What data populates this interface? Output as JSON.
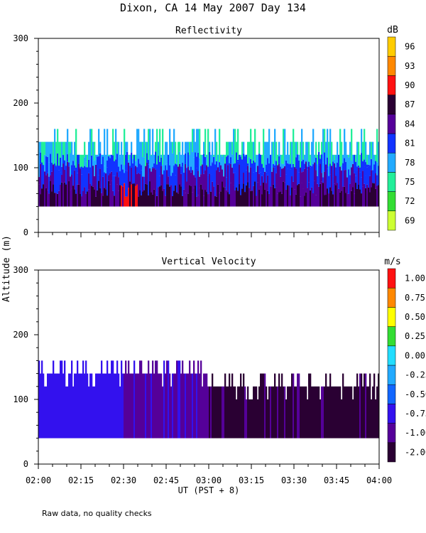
{
  "title": "Dixon, CA 14 May 2007  Day 134",
  "ylabel": "Altitude (m)",
  "xlabel": "UT  (PST + 8)",
  "footnote": "Raw data, no quality checks",
  "x_ticks": [
    "02:00",
    "02:15",
    "02:30",
    "02:45",
    "03:00",
    "03:15",
    "03:30",
    "03:45",
    "04:00"
  ],
  "y_ticks": [
    "0",
    "100",
    "200",
    "300"
  ],
  "chart_data": [
    {
      "type": "heatmap",
      "title": "Reflectivity",
      "x_range": [
        "02:00",
        "04:00"
      ],
      "ylim": [
        0,
        300
      ],
      "colorbar": {
        "unit": "dB",
        "levels": [
          {
            "label": "69",
            "color": "#ccff33"
          },
          {
            "label": "72",
            "color": "#33dd33"
          },
          {
            "label": "75",
            "color": "#22ee99"
          },
          {
            "label": "78",
            "color": "#22aaff"
          },
          {
            "label": "81",
            "color": "#1133ff"
          },
          {
            "label": "84",
            "color": "#550099"
          },
          {
            "label": "87",
            "color": "#2a0033"
          },
          {
            "label": "90",
            "color": "#ff1111"
          },
          {
            "label": "93",
            "color": "#ff8800"
          },
          {
            "label": "96",
            "color": "#ffcc00"
          }
        ]
      },
      "echo_base_m": 40,
      "layers": [
        {
          "level": "84–90",
          "from_m": 40,
          "to_m": 70,
          "note": "dark core, red streaks 02:25–02:35"
        },
        {
          "level": "81–84",
          "from_m": 70,
          "to_m": 100
        },
        {
          "level": "78",
          "from_m": 100,
          "to_m": 120
        },
        {
          "level": "75–78",
          "from_m": 120,
          "to_m": 160,
          "note": "sporadic tops up to 160 m"
        }
      ]
    },
    {
      "type": "heatmap",
      "title": "Vertical Velocity",
      "x_range": [
        "02:00",
        "04:00"
      ],
      "ylim": [
        0,
        300
      ],
      "colorbar": {
        "unit": "m/s",
        "levels": [
          {
            "label": "-2.00",
            "color": "#2a0033"
          },
          {
            "label": "-1.00",
            "color": "#550099"
          },
          {
            "label": "-0.75",
            "color": "#3311ee"
          },
          {
            "label": "-0.50",
            "color": "#1166ff"
          },
          {
            "label": "-0.25",
            "color": "#22aaff"
          },
          {
            "label": "0.00",
            "color": "#22ddff"
          },
          {
            "label": "0.25",
            "color": "#33dd33"
          },
          {
            "label": "0.50",
            "color": "#ffff00"
          },
          {
            "label": "0.75",
            "color": "#ff8800"
          },
          {
            "label": "1.00",
            "color": "#ff1111"
          }
        ]
      },
      "echo_base_m": 40,
      "segments": [
        {
          "from": "02:00",
          "to": "02:30",
          "level": "-0.75",
          "top_m": 140
        },
        {
          "from": "02:30",
          "to": "03:00",
          "level": "-1.00",
          "top_m": 140
        },
        {
          "from": "03:00",
          "to": "04:00",
          "level": "-2.00",
          "top_m": 120
        }
      ]
    }
  ]
}
